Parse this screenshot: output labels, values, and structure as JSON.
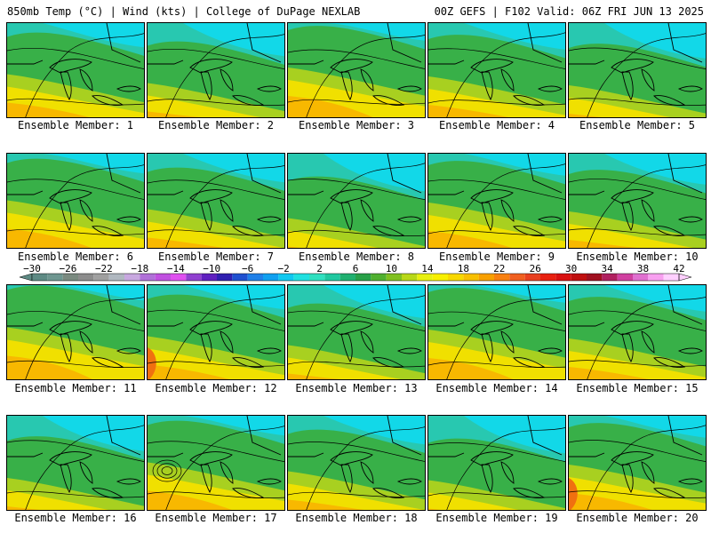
{
  "header": {
    "left": "850mb Temp (°C) | Wind (kts) | College of DuPage NEXLAB",
    "right": "00Z GEFS | F102 Valid: 06Z FRI JUN 13 2025"
  },
  "label_prefix": "Ensemble Member: ",
  "members": [
    1,
    2,
    3,
    4,
    5,
    6,
    7,
    8,
    9,
    10,
    11,
    12,
    13,
    14,
    15,
    16,
    17,
    18,
    19,
    20
  ],
  "colorbar": {
    "tick_labels": [
      "−30",
      "−26",
      "−22",
      "−18",
      "−14",
      "−10",
      "−6",
      "−2",
      "2",
      "6",
      "10",
      "14",
      "18",
      "22",
      "26",
      "30",
      "34",
      "38",
      "42"
    ],
    "colors": [
      "#5e8a84",
      "#6e9690",
      "#7a8a80",
      "#8c8c8c",
      "#a0a0a0",
      "#b0b8c0",
      "#c8a8e0",
      "#b070d8",
      "#c050e0",
      "#e050f0",
      "#9040d0",
      "#6020c0",
      "#3020b0",
      "#2050d0",
      "#2080e8",
      "#10a0f0",
      "#10c8f0",
      "#20e0e0",
      "#30e0c0",
      "#20c8a0",
      "#20b070",
      "#28a048",
      "#50b030",
      "#80c020",
      "#b8d818",
      "#e8f010",
      "#f8f000",
      "#f8d800",
      "#f8c000",
      "#f8a000",
      "#f88010",
      "#f06020",
      "#e84020",
      "#e82010",
      "#d81010",
      "#c01010",
      "#a01020",
      "#b02060",
      "#d040a0",
      "#e070d0",
      "#f8a0f0",
      "#ffd0ff"
    ]
  },
  "colors": {
    "cold": "#12d8e8",
    "cool": "#28c8b0",
    "mild": "#38b048",
    "warm": "#a8d020",
    "hot": "#f0e000",
    "vhot": "#f8b800",
    "ext": "#f07010"
  }
}
